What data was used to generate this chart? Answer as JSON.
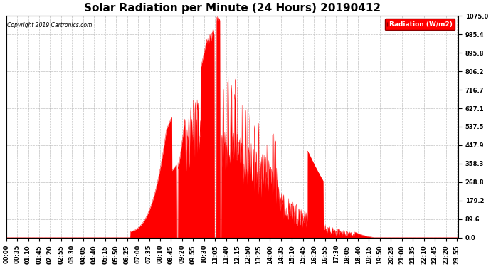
{
  "title": "Solar Radiation per Minute (24 Hours) 20190412",
  "copyright_text": "Copyright 2019 Cartronics.com",
  "legend_label": "Radiation (W/m2)",
  "yticks": [
    0.0,
    89.6,
    179.2,
    268.8,
    358.3,
    447.9,
    537.5,
    627.1,
    716.7,
    806.2,
    895.8,
    985.4,
    1075.0
  ],
  "ymax": 1075.0,
  "ymin": 0.0,
  "fill_color": "#FF0000",
  "line_color": "#FF0000",
  "background_color": "#FFFFFF",
  "grid_color": "#AAAAAA",
  "dashed_line_color": "#FF0000",
  "title_fontsize": 11,
  "tick_fontsize": 6,
  "total_minutes": 1440,
  "xtick_interval_minutes": 35,
  "sunrise_minute": 395,
  "sunset_minute": 1175,
  "figwidth": 6.9,
  "figheight": 3.75,
  "dpi": 100
}
